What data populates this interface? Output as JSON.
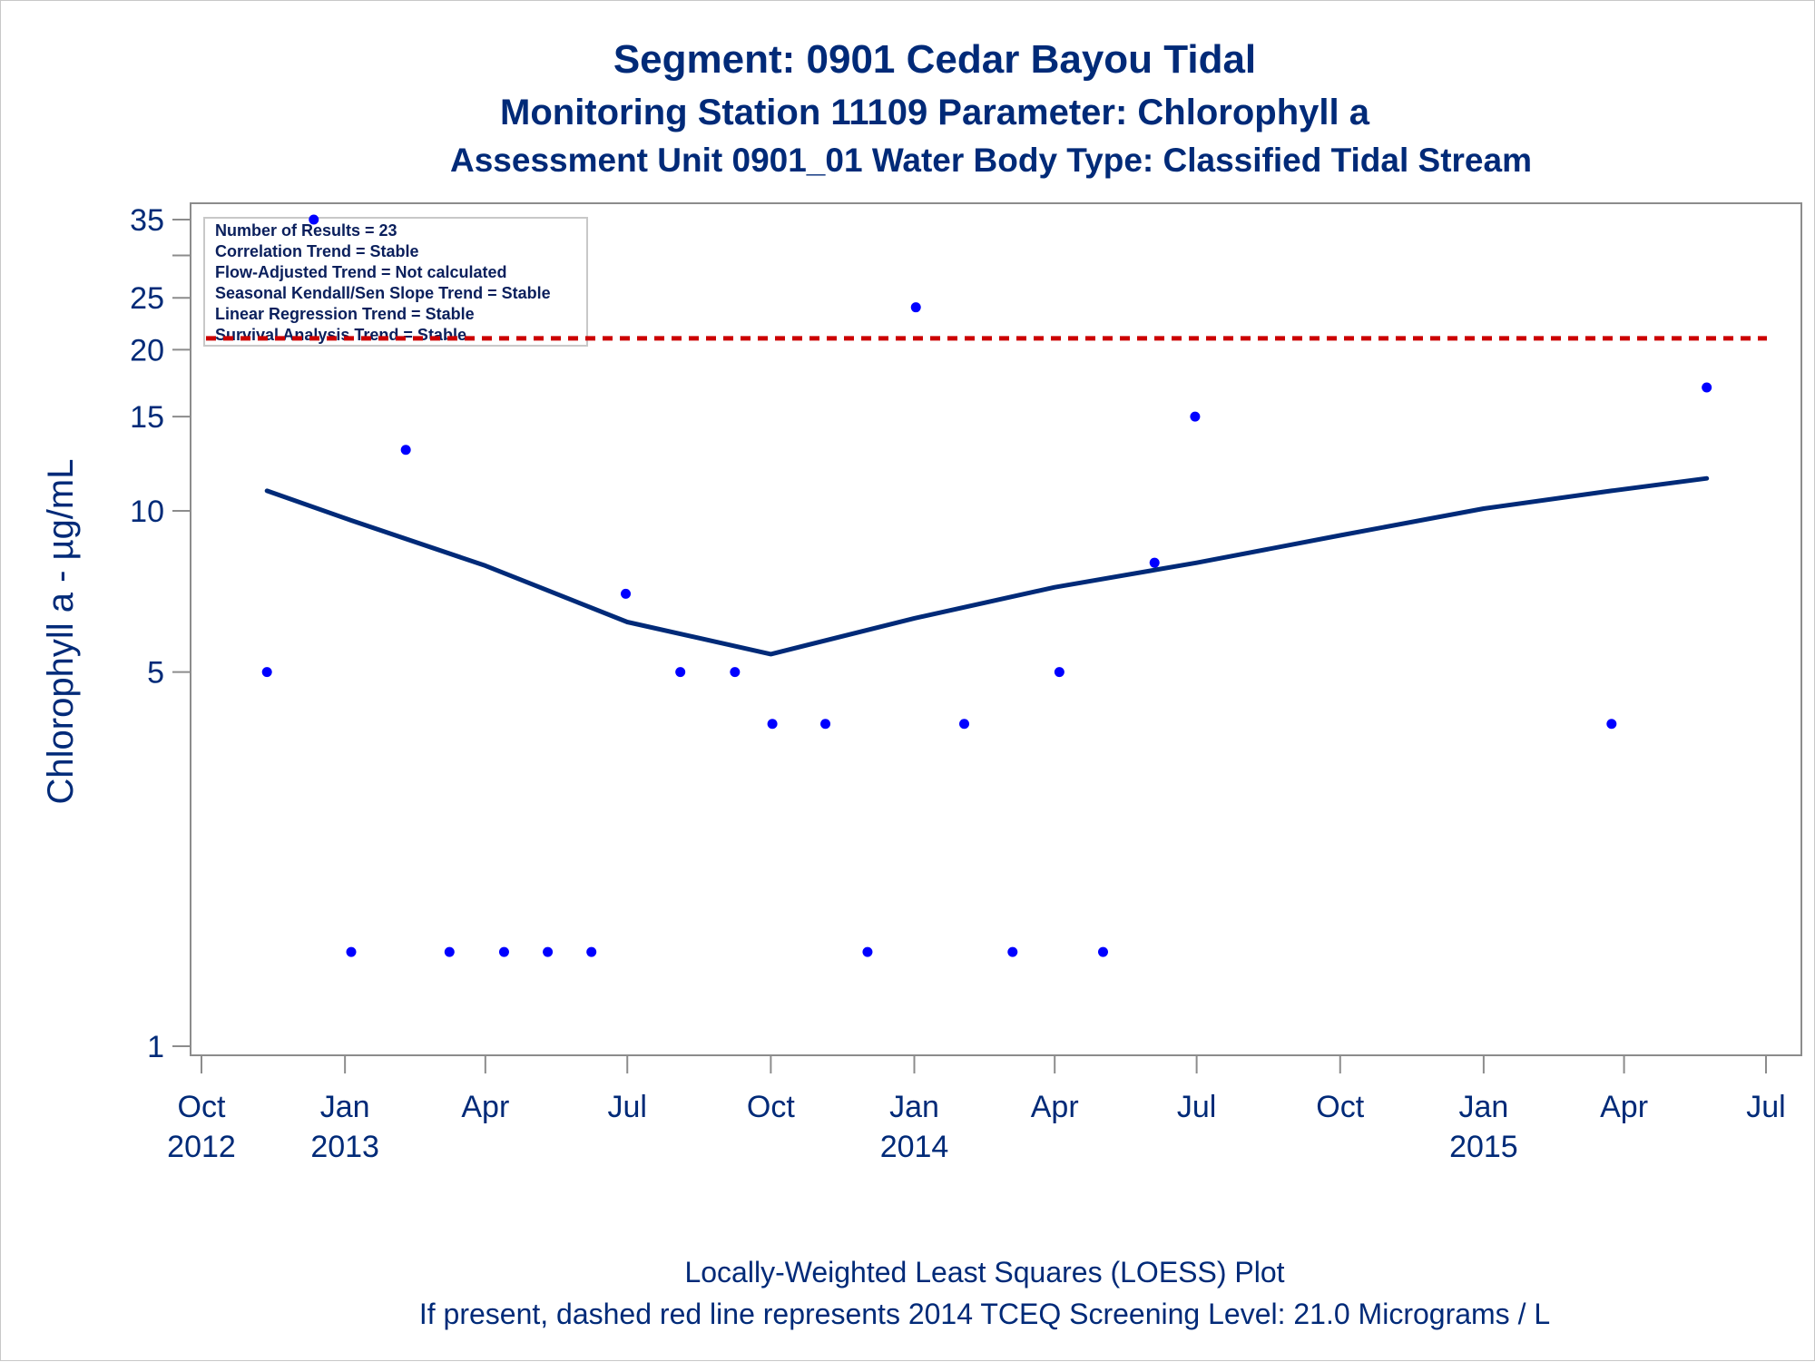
{
  "chart_data": {
    "type": "scatter",
    "title": "Segment: 0901  Cedar Bayou Tidal",
    "subtitle": "Monitoring Station 11109 Parameter: Chlorophyll a",
    "subtitle2": "Assessment Unit 0901_01   Water Body Type: Classified Tidal Stream",
    "xlabel": "",
    "ylabel": "Chlorophyll a -  µg/mL",
    "y_scale": "log",
    "ylim": [
      1,
      35
    ],
    "xlim": [
      "2012-10-01",
      "2015-07-01"
    ],
    "grid": false,
    "yticks": [
      {
        "value": 1,
        "label": "1"
      },
      {
        "value": 5,
        "label": "5"
      },
      {
        "value": 10,
        "label": "10"
      },
      {
        "value": 15,
        "label": "15"
      },
      {
        "value": 20,
        "label": "20"
      },
      {
        "value": 25,
        "label": "25"
      },
      {
        "value": 30,
        "label": ""
      },
      {
        "value": 35,
        "label": "35"
      }
    ],
    "xticks": [
      {
        "date": "2012-10-01",
        "month": "Oct",
        "year": "2012"
      },
      {
        "date": "2013-01-01",
        "month": "Jan",
        "year": "2013"
      },
      {
        "date": "2013-04-01",
        "month": "Apr",
        "year": ""
      },
      {
        "date": "2013-07-01",
        "month": "Jul",
        "year": ""
      },
      {
        "date": "2013-10-01",
        "month": "Oct",
        "year": ""
      },
      {
        "date": "2014-01-01",
        "month": "Jan",
        "year": "2014"
      },
      {
        "date": "2014-04-01",
        "month": "Apr",
        "year": ""
      },
      {
        "date": "2014-07-01",
        "month": "Jul",
        "year": ""
      },
      {
        "date": "2014-10-01",
        "month": "Oct",
        "year": ""
      },
      {
        "date": "2015-01-01",
        "month": "Jan",
        "year": "2015"
      },
      {
        "date": "2015-04-01",
        "month": "Apr",
        "year": ""
      },
      {
        "date": "2015-07-01",
        "month": "Jul",
        "year": ""
      }
    ],
    "series": [
      {
        "type": "scatter",
        "color": "#0000ff",
        "points": [
          {
            "x": "2012-11-12",
            "y": 5
          },
          {
            "x": "2012-12-12",
            "y": 35
          },
          {
            "x": "2013-01-05",
            "y": 1.5
          },
          {
            "x": "2013-02-09",
            "y": 13
          },
          {
            "x": "2013-03-09",
            "y": 1.5
          },
          {
            "x": "2013-04-13",
            "y": 1.5
          },
          {
            "x": "2013-05-11",
            "y": 1.5
          },
          {
            "x": "2013-06-08",
            "y": 1.5
          },
          {
            "x": "2013-06-30",
            "y": 7
          },
          {
            "x": "2013-08-04",
            "y": 5
          },
          {
            "x": "2013-09-08",
            "y": 5
          },
          {
            "x": "2013-10-02",
            "y": 4
          },
          {
            "x": "2013-11-05",
            "y": 4
          },
          {
            "x": "2013-12-02",
            "y": 1.5
          },
          {
            "x": "2014-01-02",
            "y": 24
          },
          {
            "x": "2014-02-02",
            "y": 4
          },
          {
            "x": "2014-03-05",
            "y": 1.5
          },
          {
            "x": "2014-04-04",
            "y": 5
          },
          {
            "x": "2014-05-02",
            "y": 1.5
          },
          {
            "x": "2014-06-04",
            "y": 8
          },
          {
            "x": "2014-06-30",
            "y": 15
          },
          {
            "x": "2015-03-24",
            "y": 4
          },
          {
            "x": "2015-05-24",
            "y": 17
          }
        ]
      },
      {
        "type": "line",
        "color": "#002a78",
        "points": [
          {
            "x": "2012-11-12",
            "y": 10.9
          },
          {
            "x": "2013-01-05",
            "y": 9.6
          },
          {
            "x": "2013-04-01",
            "y": 7.9
          },
          {
            "x": "2013-07-01",
            "y": 6.2
          },
          {
            "x": "2013-10-01",
            "y": 5.4
          },
          {
            "x": "2014-01-01",
            "y": 6.3
          },
          {
            "x": "2014-04-01",
            "y": 7.2
          },
          {
            "x": "2014-07-01",
            "y": 8.0
          },
          {
            "x": "2014-10-01",
            "y": 9.0
          },
          {
            "x": "2015-01-01",
            "y": 10.1
          },
          {
            "x": "2015-03-24",
            "y": 10.9
          },
          {
            "x": "2015-05-24",
            "y": 11.5
          }
        ]
      },
      {
        "type": "reference-line",
        "color": "#cc0000",
        "y": 21.0
      }
    ],
    "legend": {
      "placement": "top-left",
      "entries": [
        "Number of Results = 23",
        "Correlation Trend = Stable",
        "Flow-Adjusted Trend = Not calculated",
        "Seasonal Kendall/Sen Slope Trend = Stable",
        "Linear Regression Trend = Stable",
        "Survival Analysis Trend = Stable"
      ]
    },
    "footnotes": [
      "Locally-Weighted Least Squares (LOESS) Plot",
      "If present, dashed red line represents 2014 TCEQ Screening Level: 21.0 Micrograms / L"
    ]
  }
}
